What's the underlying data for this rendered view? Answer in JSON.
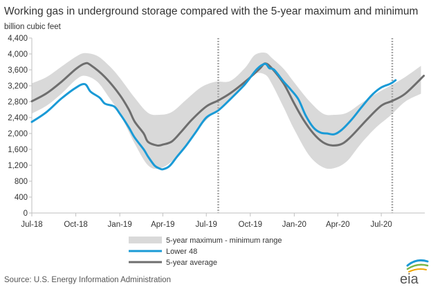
{
  "chart_data": {
    "type": "line",
    "title": "Working gas in underground  storage compared with the 5-year maximum and minimum",
    "ylabel": "billion cubic feet",
    "ylim": [
      0,
      4400
    ],
    "yticks": [
      0,
      400,
      800,
      1200,
      1600,
      2000,
      2400,
      2800,
      3200,
      3600,
      4000,
      4400
    ],
    "ytick_labels": [
      "0",
      "400",
      "800",
      "1,200",
      "1,600",
      "2,000",
      "2,400",
      "2,800",
      "3,200",
      "3,600",
      "4,000",
      "4,400"
    ],
    "xlim": [
      "2018-07-01",
      "2020-09-30"
    ],
    "xticks": [
      "2018-07-01",
      "2018-10-01",
      "2019-01-01",
      "2019-04-01",
      "2019-07-01",
      "2019-10-01",
      "2020-01-01",
      "2020-04-01",
      "2020-07-01"
    ],
    "xtick_labels": [
      "Jul-18",
      "Oct-18",
      "Jan-19",
      "Apr-19",
      "Jul-19",
      "Oct-19",
      "Jan-20",
      "Apr-20",
      "Jul-20"
    ],
    "reference_lines": [
      "2019-07-26",
      "2020-07-24"
    ],
    "grid": false,
    "legend_placement": "bottom-center",
    "colors": {
      "range": "#d9d9d9",
      "lower48": "#1a9ad6",
      "avg": "#6e6e6e",
      "refline": "#a6a6a6"
    },
    "legend": [
      "5-year maximum - minimum range",
      "Lower 48",
      "5-year average"
    ],
    "band": {
      "x": [
        "2018-07-01",
        "2018-08-01",
        "2018-09-01",
        "2018-10-01",
        "2018-10-20",
        "2018-11-15",
        "2018-12-10",
        "2019-01-01",
        "2019-02-01",
        "2019-03-01",
        "2019-03-25",
        "2019-04-20",
        "2019-05-20",
        "2019-06-20",
        "2019-07-20",
        "2019-08-20",
        "2019-09-20",
        "2019-10-10",
        "2019-11-01",
        "2019-11-15",
        "2019-12-10",
        "2020-01-01",
        "2020-02-01",
        "2020-03-01",
        "2020-03-25",
        "2020-04-20",
        "2020-05-20",
        "2020-06-20",
        "2020-07-20",
        "2020-08-20",
        "2020-09-22"
      ],
      "upper": [
        3260,
        3420,
        3680,
        3930,
        4020,
        3950,
        3700,
        3400,
        2900,
        2520,
        2470,
        2540,
        2850,
        3160,
        3300,
        3320,
        3650,
        3970,
        4030,
        3900,
        3620,
        3280,
        2820,
        2500,
        2470,
        2520,
        2760,
        3000,
        3200,
        3420,
        3700
      ],
      "lower": [
        2500,
        2700,
        3000,
        3350,
        3450,
        3300,
        2900,
        2500,
        1750,
        1200,
        1120,
        1300,
        1700,
        2200,
        2550,
        2880,
        3220,
        3500,
        3480,
        3250,
        2650,
        2100,
        1450,
        1150,
        1130,
        1300,
        1750,
        2150,
        2450,
        2800,
        3000
      ]
    },
    "series": [
      {
        "name": "Lower 48",
        "x": [
          "2018-07-01",
          "2018-08-01",
          "2018-09-01",
          "2018-10-01",
          "2018-10-20",
          "2018-11-01",
          "2018-11-20",
          "2018-12-01",
          "2018-12-20",
          "2019-01-01",
          "2019-01-20",
          "2019-02-01",
          "2019-02-20",
          "2019-03-01",
          "2019-03-15",
          "2019-03-25",
          "2019-04-01",
          "2019-04-15",
          "2019-05-01",
          "2019-05-20",
          "2019-06-10",
          "2019-07-01",
          "2019-07-26",
          "2019-08-20",
          "2019-09-20",
          "2019-10-15",
          "2019-11-01",
          "2019-11-10",
          "2019-11-20",
          "2019-12-10",
          "2019-12-25",
          "2020-01-10",
          "2020-01-25",
          "2020-02-10",
          "2020-02-25",
          "2020-03-10",
          "2020-03-25",
          "2020-04-10",
          "2020-04-30",
          "2020-05-20",
          "2020-06-10",
          "2020-06-30",
          "2020-07-20",
          "2020-07-31"
        ],
        "values": [
          2290,
          2540,
          2880,
          3150,
          3240,
          3050,
          2900,
          2750,
          2680,
          2500,
          2150,
          1900,
          1600,
          1420,
          1190,
          1120,
          1100,
          1180,
          1420,
          1700,
          2050,
          2400,
          2580,
          2860,
          3240,
          3620,
          3750,
          3640,
          3600,
          3300,
          3100,
          2850,
          2450,
          2150,
          2020,
          2000,
          1980,
          2100,
          2350,
          2650,
          2950,
          3150,
          3250,
          3340
        ]
      },
      {
        "name": "5-year average",
        "x": [
          "2018-07-01",
          "2018-08-01",
          "2018-09-01",
          "2018-10-01",
          "2018-10-20",
          "2018-11-01",
          "2018-12-01",
          "2019-01-01",
          "2019-01-20",
          "2019-02-01",
          "2019-02-20",
          "2019-03-01",
          "2019-03-20",
          "2019-04-01",
          "2019-04-20",
          "2019-05-10",
          "2019-06-01",
          "2019-07-01",
          "2019-07-26",
          "2019-08-20",
          "2019-09-20",
          "2019-10-20",
          "2019-11-01",
          "2019-11-15",
          "2019-12-10",
          "2020-01-01",
          "2020-01-20",
          "2020-02-10",
          "2020-03-01",
          "2020-03-20",
          "2020-04-10",
          "2020-05-01",
          "2020-06-01",
          "2020-07-01",
          "2020-07-24",
          "2020-08-20",
          "2020-09-28"
        ],
        "values": [
          2810,
          3010,
          3300,
          3620,
          3760,
          3720,
          3420,
          2970,
          2600,
          2300,
          2000,
          1790,
          1700,
          1720,
          1800,
          2050,
          2350,
          2680,
          2830,
          3010,
          3300,
          3620,
          3760,
          3640,
          3250,
          2750,
          2350,
          2000,
          1780,
          1700,
          1740,
          1950,
          2350,
          2700,
          2820,
          3000,
          3450
        ]
      }
    ]
  },
  "source": "Source:  U.S. Energy Information Administration",
  "logo_text": "eia"
}
